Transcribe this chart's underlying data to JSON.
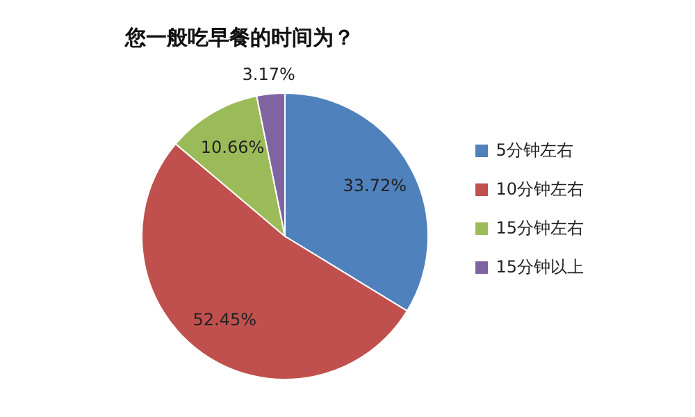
{
  "chart_data": {
    "type": "pie",
    "title": "您一般吃早餐的时间为？",
    "categories": [
      "5分钟左右",
      "10分钟左右",
      "15分钟左右",
      "15分钟以上"
    ],
    "values": [
      33.72,
      52.45,
      10.66,
      3.17
    ],
    "colors": [
      "#4f81bd",
      "#c0504d",
      "#9bbb59",
      "#8064a2"
    ],
    "value_labels": [
      "33.72%",
      "52.45%",
      "10.66%",
      "3.17%"
    ],
    "legend": "right"
  }
}
